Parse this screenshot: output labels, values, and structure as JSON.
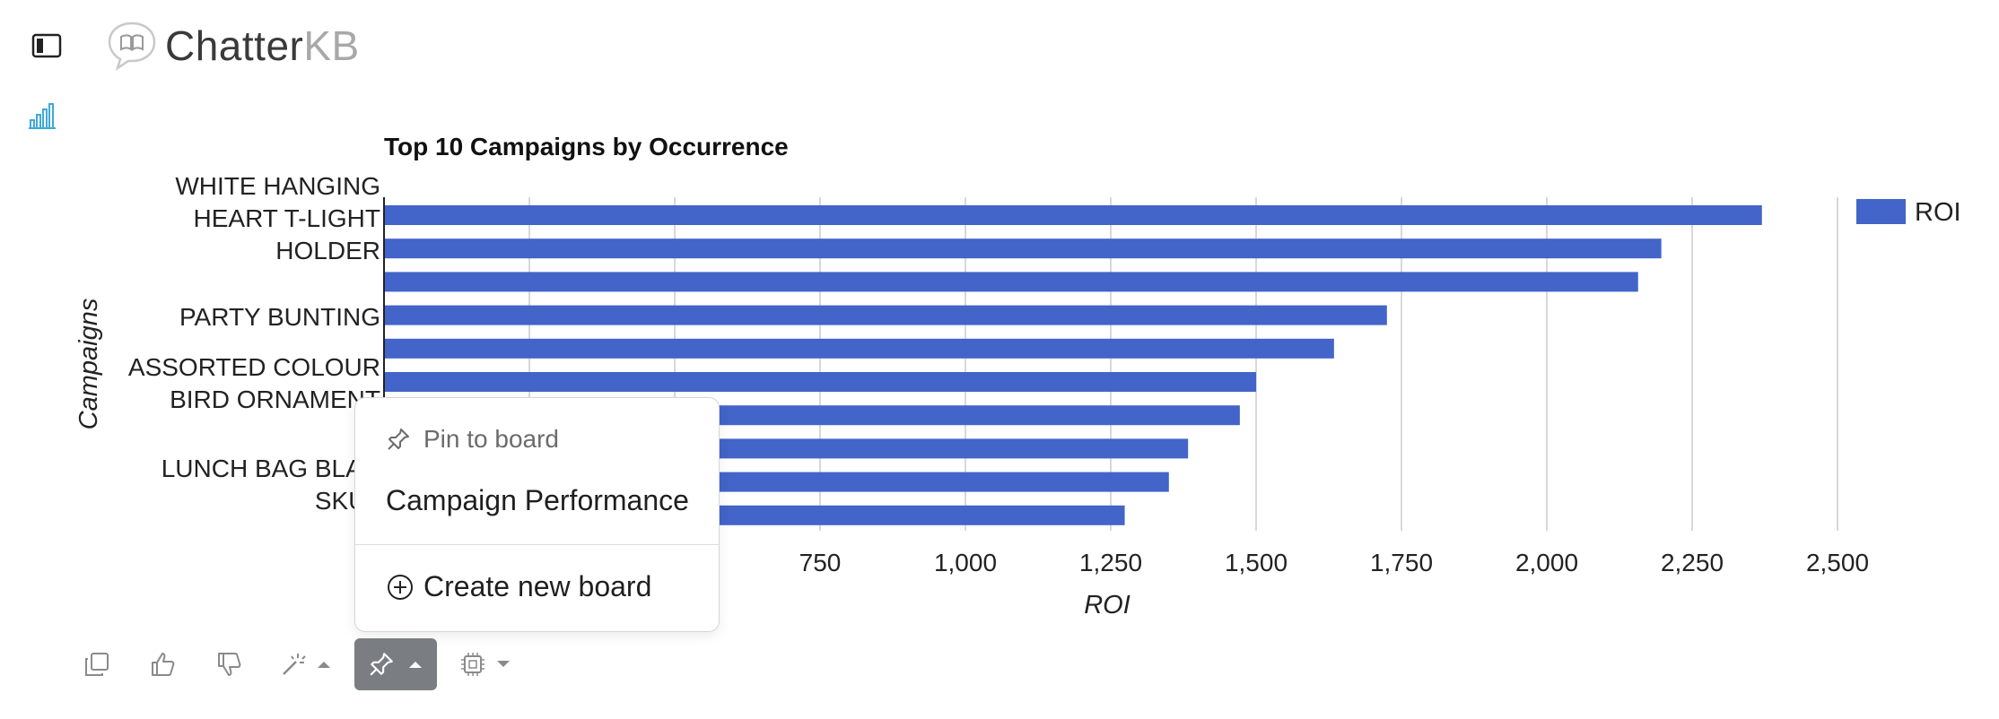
{
  "app": {
    "brand_primary": "Chatter",
    "brand_secondary": "KB"
  },
  "icons": {
    "sidebar_toggle": "sidebar-toggle-icon",
    "logo": "chat-book-icon",
    "chart_type": "bar-chart-icon",
    "copy": "copy-icon",
    "thumbs_up": "thumbs-up-icon",
    "thumbs_down": "thumbs-down-icon",
    "magic": "magic-wand-icon",
    "pin": "pin-icon",
    "model": "chip-icon",
    "plus_circle": "plus-circle-icon"
  },
  "colors": {
    "bar": "#4364c8",
    "accent": "#3fa9d6",
    "pin_button": "#7a7e83"
  },
  "pin_menu": {
    "header": "Pin to board",
    "boards": [
      "Campaign Performance"
    ],
    "create_label": "Create new board"
  },
  "chart_data": {
    "type": "bar",
    "orientation": "horizontal",
    "title": "Top 10 Campaigns by Occurrence",
    "xlabel": "ROI",
    "ylabel": "Campaigns",
    "xlim": [
      0,
      2500
    ],
    "x_ticks": [
      0,
      250,
      500,
      750,
      1000,
      1250,
      1500,
      1750,
      2000,
      2250,
      2500
    ],
    "x_tick_labels_visible": [
      "750",
      "1,000",
      "1,250",
      "1,500",
      "1,750",
      "2,000",
      "2,250",
      "2,500"
    ],
    "grid": true,
    "legend": "top-right",
    "series": [
      {
        "name": "ROI",
        "values": [
          2370,
          2197,
          2157,
          1725,
          1634,
          1500,
          1472,
          1383,
          1350,
          1274
        ]
      }
    ],
    "category_labels_visible": [
      [
        "WHITE HANGING",
        "HEART T-LIGHT",
        "HOLDER"
      ],
      [
        "PARTY BUNTING"
      ],
      [
        "ASSORTED COLOUR",
        "BIRD ORNAMENT"
      ],
      [
        "LUNCH BAG BLAC",
        "SKUL"
      ]
    ]
  }
}
